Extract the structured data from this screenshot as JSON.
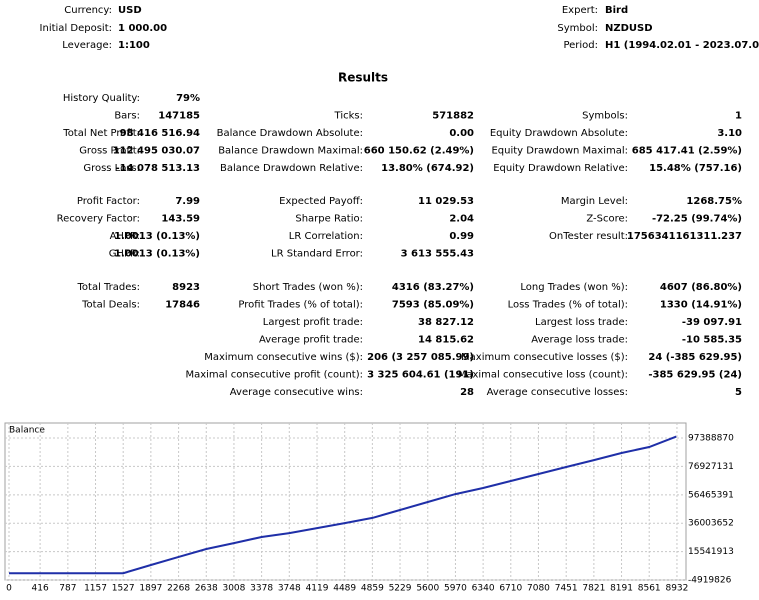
{
  "header": {
    "left": [
      {
        "label": "Currency:",
        "value": "USD"
      },
      {
        "label": "Initial Deposit:",
        "value": "1 000.00"
      },
      {
        "label": "Leverage:",
        "value": "1:100"
      }
    ],
    "right": [
      {
        "label": "Expert:",
        "value": "Bird"
      },
      {
        "label": "Symbol:",
        "value": "NZDUSD"
      },
      {
        "label": "Period:",
        "value": "H1 (1994.02.01 - 2023.07.05)"
      }
    ]
  },
  "results_title": "Results",
  "groups": [
    [
      [
        {
          "label": "History Quality:",
          "value": "79%"
        },
        null,
        null
      ],
      [
        {
          "label": "Bars:",
          "value": "147185"
        },
        {
          "label": "Ticks:",
          "value": "571882"
        },
        {
          "label": "Symbols:",
          "value": "1"
        }
      ],
      [
        {
          "label": "Total Net Profit:",
          "value": "98 416 516.94"
        },
        {
          "label": "Balance Drawdown Absolute:",
          "value": "0.00"
        },
        {
          "label": "Equity Drawdown Absolute:",
          "value": "3.10"
        }
      ],
      [
        {
          "label": "Gross Profit:",
          "value": "112 495 030.07"
        },
        {
          "label": "Balance Drawdown Maximal:",
          "value": "660 150.62 (2.49%)"
        },
        {
          "label": "Equity Drawdown Maximal:",
          "value": "685 417.41 (2.59%)"
        }
      ],
      [
        {
          "label": "Gross Loss:",
          "value": "-14 078 513.13"
        },
        {
          "label": "Balance Drawdown Relative:",
          "value": "13.80% (674.92)"
        },
        {
          "label": "Equity Drawdown Relative:",
          "value": "15.48% (757.16)"
        }
      ]
    ],
    [
      [
        {
          "label": "Profit Factor:",
          "value": "7.99"
        },
        {
          "label": "Expected Payoff:",
          "value": "11 029.53"
        },
        {
          "label": "Margin Level:",
          "value": "1268.75%"
        }
      ],
      [
        {
          "label": "Recovery Factor:",
          "value": "143.59"
        },
        {
          "label": "Sharpe Ratio:",
          "value": "2.04"
        },
        {
          "label": "Z-Score:",
          "value": "-72.25 (99.74%)"
        }
      ],
      [
        {
          "label": "AHPR:",
          "value": "1.0013 (0.13%)"
        },
        {
          "label": "LR Correlation:",
          "value": "0.99"
        },
        {
          "label": "OnTester result:",
          "value": "1756341161311.237"
        }
      ],
      [
        {
          "label": "GHPR:",
          "value": "1.0013 (0.13%)"
        },
        {
          "label": "LR Standard Error:",
          "value": "3 613 555.43"
        },
        null
      ]
    ],
    [
      [
        {
          "label": "Total Trades:",
          "value": "8923"
        },
        {
          "label": "Short Trades (won %):",
          "value": "4316 (83.27%)"
        },
        {
          "label": "Long Trades (won %):",
          "value": "4607 (86.80%)"
        }
      ],
      [
        {
          "label": "Total Deals:",
          "value": "17846"
        },
        {
          "label": "Profit Trades (% of total):",
          "value": "7593 (85.09%)"
        },
        {
          "label": "Loss Trades (% of total):",
          "value": "1330 (14.91%)"
        }
      ],
      [
        null,
        {
          "label": "Largest profit trade:",
          "value": "38 827.12"
        },
        {
          "label": "Largest loss trade:",
          "value": "-39 097.91"
        }
      ],
      [
        null,
        {
          "label": "Average profit trade:",
          "value": "14 815.62"
        },
        {
          "label": "Average loss trade:",
          "value": "-10 585.35"
        }
      ],
      [
        null,
        {
          "label": "Maximum consecutive wins ($):",
          "value": "206 (3 257 085.99)"
        },
        {
          "label": "Maximum consecutive losses ($):",
          "value": "24 (-385 629.95)"
        }
      ],
      [
        null,
        {
          "label": "Maximal consecutive profit (count):",
          "value": "3 325 604.61 (191)"
        },
        {
          "label": "Maximal consecutive loss (count):",
          "value": "-385 629.95 (24)"
        }
      ],
      [
        null,
        {
          "label": "Average consecutive wins:",
          "value": "28"
        },
        {
          "label": "Average consecutive losses:",
          "value": "5"
        }
      ]
    ]
  ],
  "balance_chart": {
    "type": "line",
    "title": "Balance",
    "color": "#1f2fa8",
    "x": [
      0,
      1527,
      1897,
      2268,
      2638,
      3008,
      3378,
      3748,
      4119,
      4489,
      4859,
      5229,
      5600,
      5970,
      6340,
      6710,
      7080,
      7451,
      7821,
      8191,
      8561,
      8923
    ],
    "values": [
      1000,
      1000,
      5900000,
      11700000,
      17400000,
      21700000,
      26100000,
      28900000,
      32500000,
      36100000,
      39800000,
      45500000,
      51300000,
      57000000,
      61400000,
      66400000,
      71500000,
      76500000,
      81500000,
      86600000,
      90900000,
      98417517
    ],
    "xlim": [
      0,
      9053
    ],
    "ylim": [
      -4919826,
      107500000
    ],
    "xticks": [
      0,
      416,
      787,
      1157,
      1527,
      1897,
      2268,
      2638,
      3008,
      3378,
      3748,
      4119,
      4489,
      4859,
      5229,
      5600,
      5970,
      6340,
      6710,
      7080,
      7451,
      7821,
      8191,
      8561,
      8932
    ],
    "yticks": [
      -4919826,
      15541913,
      36003652,
      56465391,
      76927131,
      97388870
    ],
    "grid": true
  }
}
